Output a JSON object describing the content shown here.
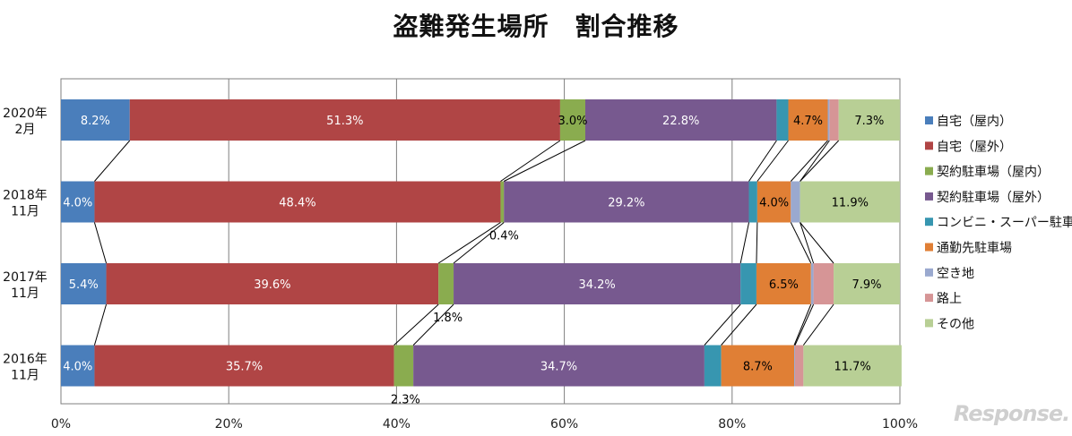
{
  "title": "盗難発生場所　割合推移",
  "logo": "Response.",
  "chart_data": {
    "type": "bar",
    "orientation": "horizontal",
    "stacked": "percent",
    "title": "盗難発生場所　割合推移",
    "categories": [
      "2020年\n2月",
      "2018年\n11月",
      "2017年\n11月",
      "2016年\n11月"
    ],
    "x_ticks": [
      "0%",
      "20%",
      "40%",
      "60%",
      "80%",
      "100%"
    ],
    "xlim": [
      0,
      100
    ],
    "grid": "vertical",
    "legend_position": "right",
    "series": [
      {
        "name": "自宅（屋内）",
        "color": "#4a7ebb",
        "values": [
          8.2,
          4.0,
          5.4,
          4.0
        ],
        "labels": [
          "8.2%",
          "4.0%",
          "5.4%",
          "4.0%"
        ]
      },
      {
        "name": "自宅（屋外）",
        "color": "#b04545",
        "values": [
          51.3,
          48.4,
          39.6,
          35.7
        ],
        "labels": [
          "51.3%",
          "48.4%",
          "39.6%",
          "35.7%"
        ]
      },
      {
        "name": "契約駐車場（屋内）",
        "color": "#8aac4f",
        "values": [
          3.0,
          0.4,
          1.8,
          2.3
        ],
        "labels": [
          "3.0%",
          "0.4%",
          "1.8%",
          "2.3%"
        ]
      },
      {
        "name": "契約駐車場（屋外）",
        "color": "#77598f",
        "values": [
          22.8,
          29.2,
          34.2,
          34.7
        ],
        "labels": [
          "22.8%",
          "29.2%",
          "34.2%",
          "34.7%"
        ]
      },
      {
        "name": "コンビニ・スーパー駐車場",
        "color": "#3796b0",
        "values": [
          1.4,
          1.0,
          1.9,
          2.0
        ],
        "labels": [
          "",
          "",
          "",
          ""
        ]
      },
      {
        "name": "通勤先駐車場",
        "color": "#e07f35",
        "values": [
          4.7,
          4.0,
          6.5,
          8.7
        ],
        "labels": [
          "4.7%",
          "4.0%",
          "6.5%",
          "8.7%"
        ]
      },
      {
        "name": "空き地",
        "color": "#9aa9cf",
        "values": [
          0.2,
          1.1,
          0.3,
          0.1
        ],
        "labels": [
          "",
          "",
          "",
          ""
        ]
      },
      {
        "name": "路上",
        "color": "#d69596",
        "values": [
          1.1,
          0.0,
          2.4,
          1.0
        ],
        "labels": [
          "",
          "",
          "",
          ""
        ]
      },
      {
        "name": "その他",
        "color": "#b8cf95",
        "values": [
          7.3,
          11.9,
          7.9,
          11.7
        ],
        "labels": [
          "7.3%",
          "11.9%",
          "7.9%",
          "11.7%"
        ]
      }
    ]
  }
}
